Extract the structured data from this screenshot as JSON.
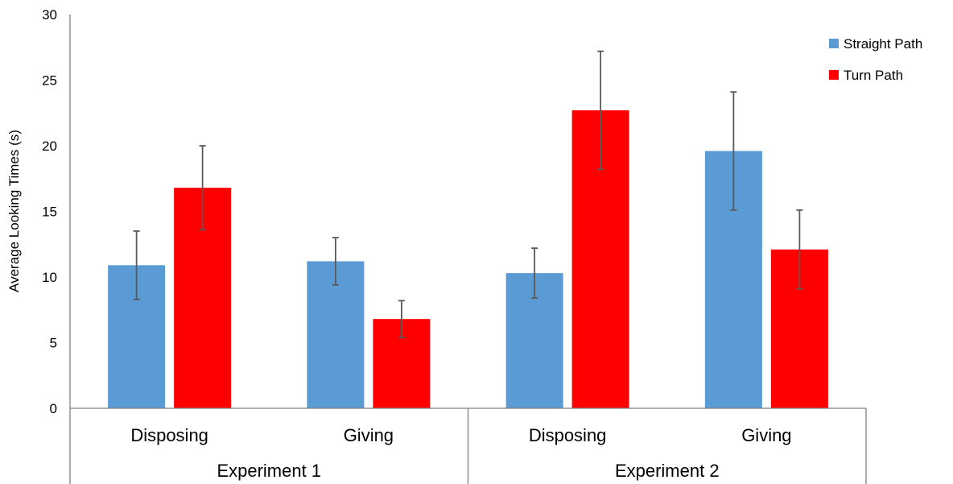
{
  "chart_data": {
    "type": "bar",
    "ylabel": "Average Looking Times (s)",
    "ylim": [
      0,
      30
    ],
    "yticks": [
      "0",
      "5",
      "10",
      "15",
      "20",
      "25",
      "30"
    ],
    "groups": [
      {
        "label": "Experiment 1",
        "categories": [
          "Disposing",
          "Giving"
        ]
      },
      {
        "label": "Experiment 2",
        "categories": [
          "Disposing",
          "Giving"
        ]
      }
    ],
    "categories": [
      "Disposing",
      "Giving",
      "Disposing",
      "Giving"
    ],
    "series": [
      {
        "name": "Straight Path",
        "color": "#5b9bd5",
        "values": [
          10.9,
          11.2,
          10.3,
          19.6
        ],
        "errors": [
          2.6,
          1.8,
          1.9,
          4.5
        ]
      },
      {
        "name": "Turn Path",
        "color": "#ff0000",
        "values": [
          16.8,
          6.8,
          22.7,
          12.1
        ],
        "errors": [
          3.2,
          1.4,
          4.5,
          3.0
        ]
      }
    ],
    "legend": "top-right",
    "grid": false
  }
}
